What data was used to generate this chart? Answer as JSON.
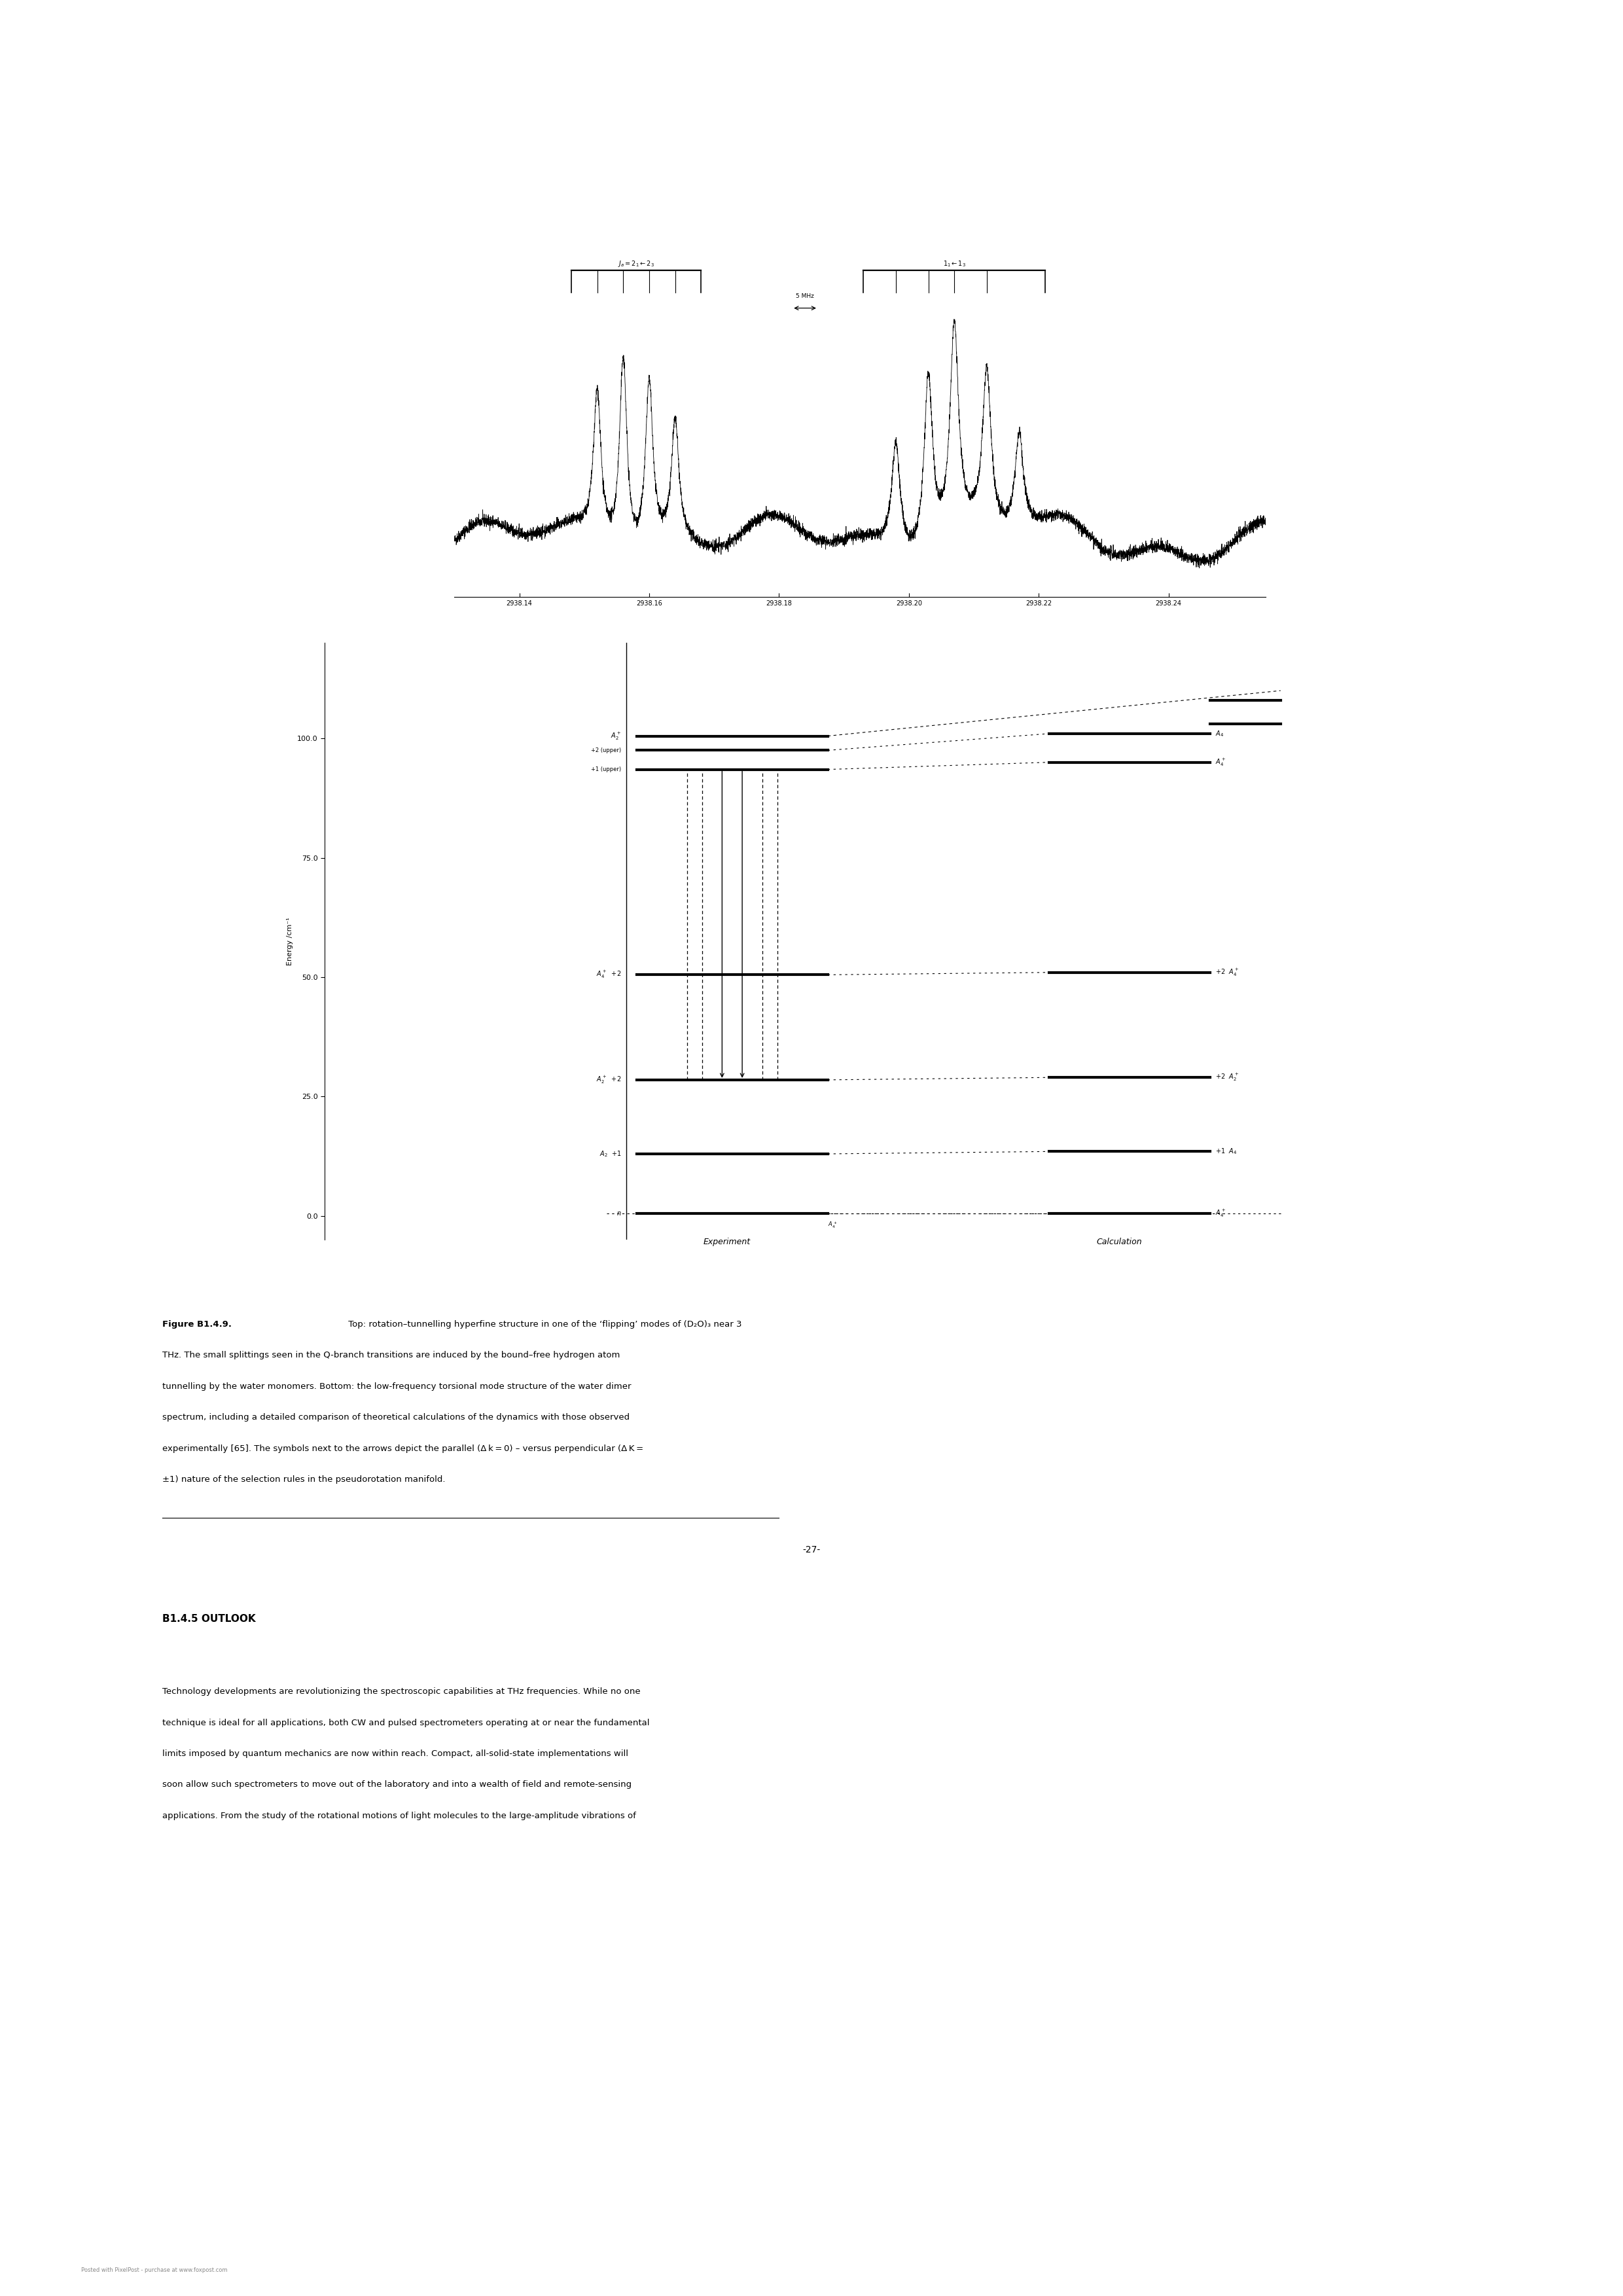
{
  "page_width": 24.8,
  "page_height": 35.08,
  "bg_color": "#ffffff",
  "top_panel": {
    "x_min": 2938.13,
    "x_max": 2938.255,
    "x_ticks": [
      2938.14,
      2938.16,
      2938.18,
      2938.2,
      2938.22,
      2938.24
    ],
    "x_tick_labels": [
      "2938.14",
      "2938.16",
      "2938.18",
      "2938.20",
      "2938.22",
      "2938.24"
    ],
    "noise_seed": 42
  },
  "bottom_panel": {
    "y_min": -5,
    "y_max": 120,
    "y_ticks": [
      0,
      25,
      50,
      75,
      100
    ],
    "y_tick_labels": [
      "0.0",
      "25.0",
      "50.0",
      "75.0",
      "100.0"
    ],
    "ylabel": "Energy /cm⁻¹",
    "xlabel_left": "Experiment",
    "xlabel_right": "Calculation"
  },
  "caption_bold": "Figure B1.4.9.",
  "caption_rest": " Top: rotation–tunnelling hyperfine structure in one of the ‘flipping’ modes of (D₂O)₃ near 3 THz. The small splittings seen in the Q-branch transitions are induced by the bound–free hydrogen atom tunnelling by the water monomers. Bottom: the low-frequency torsional mode structure of the water dimer spectrum, including a detailed comparison of theoretical calculations of the dynamics with those observed experimentally [65]. The symbols next to the arrows depict the parallel (Δ k = 0) versus perpendicular (Δ K = ±1) nature of the selection rules in the pseudorotation manifold.",
  "section_heading": "B1.4.5 OUTLOOK",
  "body_lines": [
    "Technology developments are revolutionizing the spectroscopic capabilities at THz frequencies. While no one",
    "technique is ideal for all applications, both CW and pulsed spectrometers operating at or near the fundamental",
    "limits imposed by quantum mechanics are now within reach. Compact, all-solid-state implementations will",
    "soon allow such spectrometers to move out of the laboratory and into a wealth of field and remote-sensing",
    "applications. From the study of the rotational motions of light molecules to the large-amplitude vibrations of"
  ],
  "footer_text": "Posted with PixelPost - purchase at www.foxpost.com",
  "page_number": "-27-"
}
